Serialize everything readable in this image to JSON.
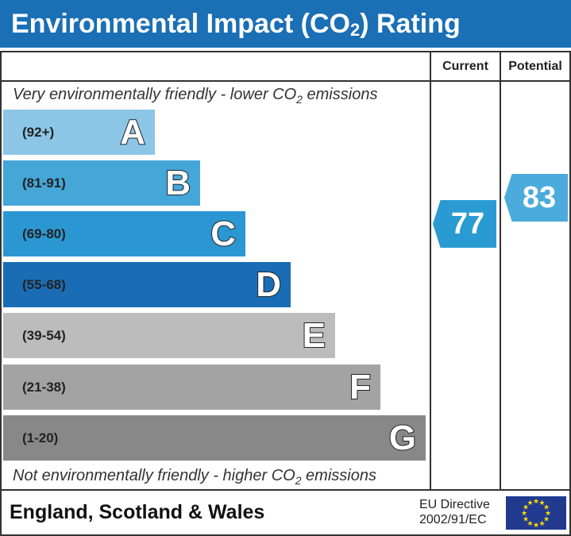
{
  "title": {
    "main": "Environmental Impact (CO",
    "sub": "2",
    "end": ") Rating"
  },
  "headers": {
    "current": "Current",
    "potential": "Potential"
  },
  "top_note": {
    "text": "Very environmentally friendly - lower CO",
    "sub": "2",
    "end": " emissions"
  },
  "bottom_note": {
    "text": "Not environmentally friendly - higher CO",
    "sub": "2",
    "end": " emissions"
  },
  "chart_data": {
    "type": "bar",
    "categories": [
      "A",
      "B",
      "C",
      "D",
      "E",
      "F",
      "G"
    ],
    "ranges": [
      "(92+)",
      "(81-91)",
      "(69-80)",
      "(55-68)",
      "(39-54)",
      "(21-38)",
      "(1-20)"
    ],
    "colors": [
      "#8cc6e7",
      "#45a6d8",
      "#2b97d2",
      "#1a6db5",
      "#bcbcbc",
      "#a3a3a3",
      "#888888"
    ],
    "current": {
      "value": "77",
      "band": "C",
      "color": "#2a9ad2"
    },
    "potential": {
      "value": "83",
      "band": "B",
      "color": "#4aabdc"
    }
  },
  "footer": {
    "region": "England, Scotland & Wales",
    "directive_line1": "EU Directive",
    "directive_line2": "2002/91/EC",
    "flag_icon": "eu-flag-icon"
  }
}
